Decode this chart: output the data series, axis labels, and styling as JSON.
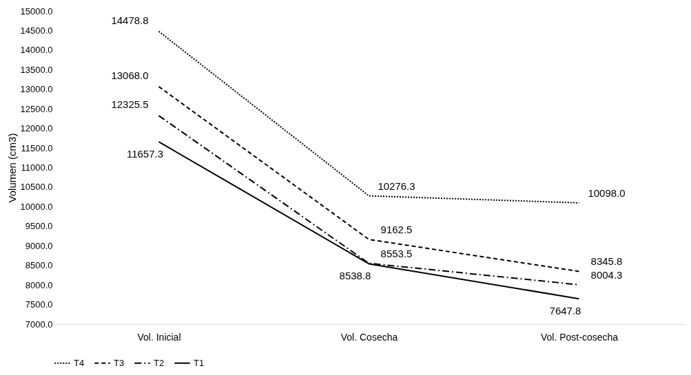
{
  "chart_data": {
    "type": "line",
    "ylabel": "Volumen (cm3)",
    "categories": [
      "Vol. Inicial",
      "Vol. Cosecha",
      "Vol. Post-cosecha"
    ],
    "series": [
      {
        "name": "T4",
        "color": "#000000",
        "line_style": "dotted",
        "values": [
          14478.8,
          10276.3,
          10098
        ],
        "value_labels": [
          "14478.8",
          "10276.3",
          "10098.0"
        ]
      },
      {
        "name": "T3",
        "color": "#000000",
        "line_style": "dashed",
        "values": [
          13068,
          9162.5,
          8345.8
        ],
        "value_labels": [
          "13068.0",
          "9162.5",
          "8345.8"
        ]
      },
      {
        "name": "T2",
        "color": "#000000",
        "line_style": "dashdot",
        "values": [
          12325.5,
          8553.5,
          8004.3
        ],
        "value_labels": [
          "12325.5",
          "8553.5",
          "8004.3"
        ]
      },
      {
        "name": "T1",
        "color": "#000000",
        "line_style": "solid",
        "values": [
          11657.3,
          8538.8,
          7647.8
        ],
        "value_labels": [
          "11657.3",
          "8538.8",
          "7647.8"
        ]
      }
    ],
    "ylim": [
      7000,
      15000
    ],
    "yticks": [
      {
        "value": 7000,
        "label": "7000.0"
      },
      {
        "value": 7500,
        "label": "7500.0"
      },
      {
        "value": 8000,
        "label": "8000.0"
      },
      {
        "value": 8500,
        "label": "8500.0"
      },
      {
        "value": 9000,
        "label": "9000.0"
      },
      {
        "value": 9500,
        "label": "9500.0"
      },
      {
        "value": 10000,
        "label": "10000.0"
      },
      {
        "value": 10500,
        "label": "10500.0"
      },
      {
        "value": 11000,
        "label": "11000.0"
      },
      {
        "value": 11500,
        "label": "11500.0"
      },
      {
        "value": 12000,
        "label": "12000.0"
      },
      {
        "value": 12500,
        "label": "12500.0"
      },
      {
        "value": 13000,
        "label": "13000.0"
      },
      {
        "value": 13500,
        "label": "13500.0"
      },
      {
        "value": 14000,
        "label": "14000.0"
      },
      {
        "value": 14500,
        "label": "14500.0"
      },
      {
        "value": 15000,
        "label": "15000.0"
      }
    ],
    "legend": "bottom",
    "grid": false,
    "marker": "none"
  }
}
